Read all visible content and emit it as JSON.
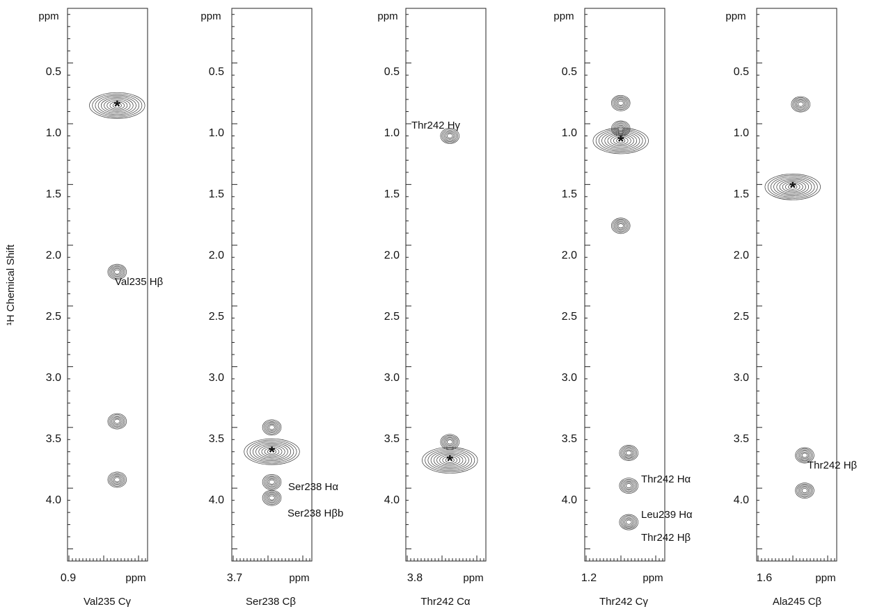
{
  "figure": {
    "y_axis_label": "¹H Chemical Shift"
  },
  "chart_data": [
    {
      "type": "contour",
      "title": "Val235 Cγ",
      "xlabel": "Val235 Cγ",
      "x_first_tick": "0.9",
      "x_unit_label": "ppm",
      "y_unit_label": "ppm",
      "y_ticks": [
        "0.5",
        "1.0",
        "1.5",
        "2.0",
        "2.5",
        "3.0",
        "3.5",
        "4.0"
      ],
      "ylim": [
        0.05,
        4.6
      ],
      "y_inverted": true,
      "peaks": [
        {
          "x": 0.62,
          "y": 0.85,
          "marked": true,
          "label": ""
        },
        {
          "x": 0.62,
          "y": 2.22,
          "marked": false,
          "label": "Val235 Hβ"
        },
        {
          "x": 0.62,
          "y": 3.45,
          "marked": false,
          "label": ""
        },
        {
          "x": 0.62,
          "y": 3.93,
          "marked": false,
          "label": ""
        }
      ]
    },
    {
      "type": "contour",
      "title": "Ser238 Cβ",
      "xlabel": "Ser238 Cβ",
      "x_first_tick": "3.7",
      "x_unit_label": "ppm",
      "y_unit_label": "ppm",
      "y_ticks": [
        "0.5",
        "1.0",
        "1.5",
        "2.0",
        "2.5",
        "3.0",
        "3.5",
        "4.0"
      ],
      "ylim": [
        0.05,
        4.6
      ],
      "y_inverted": true,
      "peaks": [
        {
          "x": 0.5,
          "y": 3.5,
          "marked": false,
          "label": ""
        },
        {
          "x": 0.5,
          "y": 3.7,
          "marked": true,
          "label": ""
        },
        {
          "x": 0.5,
          "y": 3.95,
          "marked": false,
          "label": "Ser238 Hα"
        },
        {
          "x": 0.5,
          "y": 4.08,
          "marked": false,
          "label": "Ser238 Hβb"
        }
      ]
    },
    {
      "type": "contour",
      "title": "Thr242 Cα",
      "xlabel": "Thr242 Cα",
      "x_first_tick": "3.8",
      "x_unit_label": "ppm",
      "y_unit_label": "ppm",
      "y_ticks": [
        "0.5",
        "1.0",
        "1.5",
        "2.0",
        "2.5",
        "3.0",
        "3.5",
        "4.0"
      ],
      "ylim": [
        0.05,
        4.6
      ],
      "y_inverted": true,
      "peaks": [
        {
          "x": 0.55,
          "y": 1.1,
          "marked": false,
          "label": "Thr242 Hγ"
        },
        {
          "x": 0.55,
          "y": 3.62,
          "marked": false,
          "label": ""
        },
        {
          "x": 0.55,
          "y": 3.77,
          "marked": true,
          "label": ""
        }
      ]
    },
    {
      "type": "contour",
      "title": "Thr242 Cγ",
      "xlabel": "Thr242 Cγ",
      "x_first_tick": "1.2",
      "x_unit_label": "ppm",
      "y_unit_label": "ppm",
      "y_ticks": [
        "0.5",
        "1.0",
        "1.5",
        "2.0",
        "2.5",
        "3.0",
        "3.5",
        "4.0"
      ],
      "ylim": [
        0.05,
        4.6
      ],
      "y_inverted": true,
      "peaks": [
        {
          "x": 0.45,
          "y": 0.83,
          "marked": false,
          "label": ""
        },
        {
          "x": 0.45,
          "y": 1.04,
          "marked": false,
          "label": ""
        },
        {
          "x": 0.45,
          "y": 1.14,
          "marked": true,
          "label": ""
        },
        {
          "x": 0.45,
          "y": 1.84,
          "marked": false,
          "label": ""
        },
        {
          "x": 0.55,
          "y": 3.71,
          "marked": false,
          "label": "Thr242 Hα"
        },
        {
          "x": 0.55,
          "y": 3.98,
          "marked": false,
          "label": "Leu239 Hα"
        },
        {
          "x": 0.55,
          "y": 4.28,
          "marked": false,
          "label": "Thr242 Hβ"
        }
      ]
    },
    {
      "type": "contour",
      "title": "Ala245 Cβ",
      "xlabel": "Ala245 Cβ",
      "x_first_tick": "1.6",
      "x_unit_label": "ppm",
      "y_unit_label": "ppm",
      "y_ticks": [
        "0.5",
        "1.0",
        "1.5",
        "2.0",
        "2.5",
        "3.0",
        "3.5",
        "4.0"
      ],
      "ylim": [
        0.05,
        4.6
      ],
      "y_inverted": true,
      "peaks": [
        {
          "x": 0.55,
          "y": 0.84,
          "marked": false,
          "label": ""
        },
        {
          "x": 0.45,
          "y": 1.52,
          "marked": true,
          "label": ""
        },
        {
          "x": 0.6,
          "y": 3.73,
          "marked": false,
          "label": "Thr242 Hβ"
        },
        {
          "x": 0.6,
          "y": 4.02,
          "marked": false,
          "label": ""
        }
      ]
    }
  ]
}
